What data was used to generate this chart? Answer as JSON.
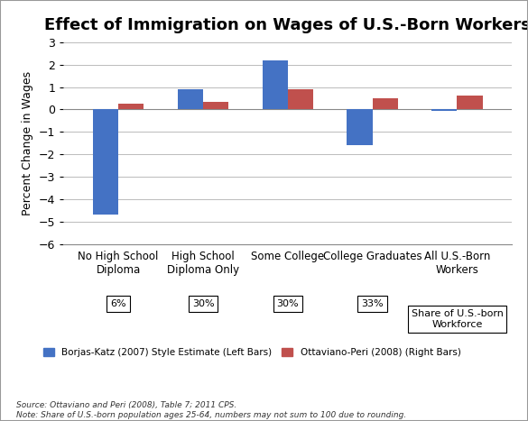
{
  "title": "Effect of Immigration on Wages of U.S.-Born Workers",
  "categories": [
    "No High School\nDiploma",
    "High School\nDiploma Only",
    "Some College",
    "College Graduates",
    "All U.S.-Born\nWorkers"
  ],
  "borjas_katz": [
    -4.7,
    0.9,
    2.2,
    -1.6,
    -0.05
  ],
  "ottaviano_peri": [
    0.25,
    0.35,
    0.9,
    0.5,
    0.6
  ],
  "shares": [
    "6%",
    "30%",
    "30%",
    "33%",
    "Share of U.S.-born\nWorkforce"
  ],
  "blue_color": "#4472C4",
  "red_color": "#C0504D",
  "ylabel": "Percent Change in Wages",
  "ylim": [
    -6,
    3
  ],
  "yticks": [
    -6,
    -5,
    -4,
    -3,
    -2,
    -1,
    0,
    1,
    2,
    3
  ],
  "legend_blue": "Borjas-Katz (2007) Style Estimate (Left Bars)",
  "legend_red": "Ottaviano-Peri (2008) (Right Bars)",
  "source_text": "Source: Ottaviano and Peri (2008), Table 7; 2011 CPS.\nNote: Share of U.S.-born population ages 25-64, numbers may not sum to 100 due to rounding.",
  "background_color": "#FFFFFF",
  "bar_width": 0.3,
  "outer_border_color": "#999999"
}
